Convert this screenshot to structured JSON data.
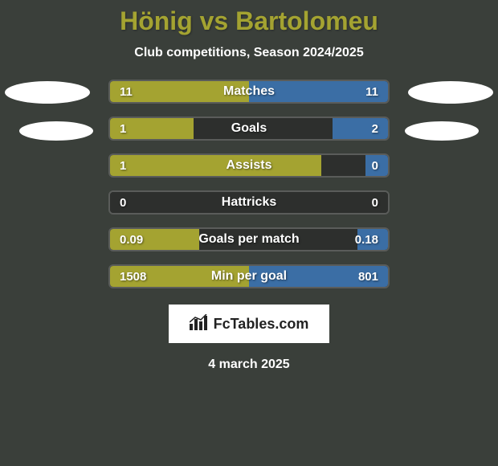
{
  "page": {
    "background_color": "#3a3f3a",
    "title": "Hönig vs Bartolomeu",
    "title_color": "#a4a331",
    "subtitle": "Club competitions, Season 2024/2025",
    "date": "4 march 2025"
  },
  "colors": {
    "left_bar": "#a4a331",
    "right_bar": "#3b6ea5",
    "row_bg": "#2d2f2d",
    "row_border": "#5a5c5a",
    "ellipse": "#ffffff"
  },
  "stats": [
    {
      "label": "Matches",
      "left_value": "11",
      "right_value": "11",
      "left_width": 50,
      "right_width": 50,
      "full_fill": true
    },
    {
      "label": "Goals",
      "left_value": "1",
      "right_value": "2",
      "left_width": 30,
      "right_width": 20,
      "full_fill": false
    },
    {
      "label": "Assists",
      "left_value": "1",
      "right_value": "0",
      "left_width": 76,
      "right_width": 8,
      "full_fill": false
    },
    {
      "label": "Hattricks",
      "left_value": "0",
      "right_value": "0",
      "left_width": 0,
      "right_width": 0,
      "full_fill": false
    },
    {
      "label": "Goals per match",
      "left_value": "0.09",
      "right_value": "0.18",
      "left_width": 32,
      "right_width": 11,
      "full_fill": false
    },
    {
      "label": "Min per goal",
      "left_value": "1508",
      "right_value": "801",
      "left_width": 50,
      "right_width": 50,
      "full_fill": true
    }
  ],
  "branding": {
    "text": "FcTables.com"
  }
}
